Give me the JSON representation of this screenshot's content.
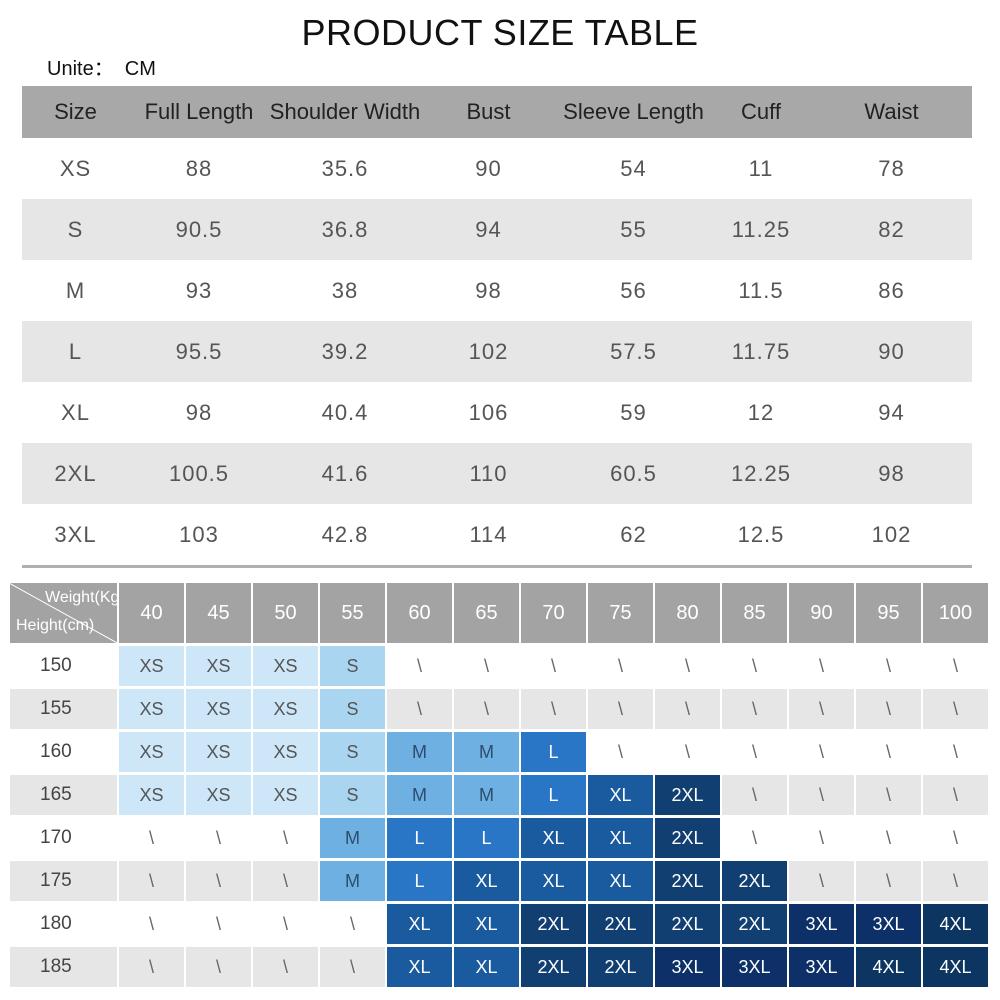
{
  "title": "PRODUCT SIZE TABLE",
  "unit_label": "Unite：  CM",
  "size_table": {
    "headers": [
      "Size",
      "Full Length",
      "Shoulder Width",
      "Bust",
      "Sleeve Length",
      "Cuff",
      "Waist"
    ],
    "rows": [
      [
        "XS",
        "88",
        "35.6",
        "90",
        "54",
        "11",
        "78"
      ],
      [
        "S",
        "90.5",
        "36.8",
        "94",
        "55",
        "11.25",
        "82"
      ],
      [
        "M",
        "93",
        "38",
        "98",
        "56",
        "11.5",
        "86"
      ],
      [
        "L",
        "95.5",
        "39.2",
        "102",
        "57.5",
        "11.75",
        "90"
      ],
      [
        "XL",
        "98",
        "40.4",
        "106",
        "59",
        "12",
        "94"
      ],
      [
        "2XL",
        "100.5",
        "41.6",
        "110",
        "60.5",
        "12.25",
        "98"
      ],
      [
        "3XL",
        "103",
        "42.8",
        "114",
        "62",
        "12.5",
        "102"
      ]
    ]
  },
  "fit_chart": {
    "weight_label": "Weight(Kg)",
    "height_label": "Height(cm)",
    "weights": [
      "40",
      "45",
      "50",
      "55",
      "60",
      "65",
      "70",
      "75",
      "80",
      "85",
      "90",
      "95",
      "100"
    ],
    "rows": [
      {
        "height": "150",
        "sizes": [
          "XS",
          "XS",
          "XS",
          "S",
          "\\",
          "\\",
          "\\",
          "\\",
          "\\",
          "\\",
          "\\",
          "\\",
          "\\"
        ]
      },
      {
        "height": "155",
        "sizes": [
          "XS",
          "XS",
          "XS",
          "S",
          "\\",
          "\\",
          "\\",
          "\\",
          "\\",
          "\\",
          "\\",
          "\\",
          "\\"
        ]
      },
      {
        "height": "160",
        "sizes": [
          "XS",
          "XS",
          "XS",
          "S",
          "M",
          "M",
          "L",
          "\\",
          "\\",
          "\\",
          "\\",
          "\\",
          "\\"
        ]
      },
      {
        "height": "165",
        "sizes": [
          "XS",
          "XS",
          "XS",
          "S",
          "M",
          "M",
          "L",
          "XL",
          "2XL",
          "\\",
          "\\",
          "\\",
          "\\"
        ]
      },
      {
        "height": "170",
        "sizes": [
          "\\",
          "\\",
          "\\",
          "M",
          "L",
          "L",
          "XL",
          "XL",
          "2XL",
          "\\",
          "\\",
          "\\",
          "\\"
        ]
      },
      {
        "height": "175",
        "sizes": [
          "\\",
          "\\",
          "\\",
          "M",
          "L",
          "XL",
          "XL",
          "XL",
          "2XL",
          "2XL",
          "\\",
          "\\",
          "\\"
        ]
      },
      {
        "height": "180",
        "sizes": [
          "\\",
          "\\",
          "\\",
          "\\",
          "XL",
          "XL",
          "2XL",
          "2XL",
          "2XL",
          "2XL",
          "3XL",
          "3XL",
          "4XL"
        ]
      },
      {
        "height": "185",
        "sizes": [
          "\\",
          "\\",
          "\\",
          "\\",
          "XL",
          "XL",
          "2XL",
          "2XL",
          "3XL",
          "3XL",
          "3XL",
          "4XL",
          "4XL"
        ]
      }
    ]
  }
}
